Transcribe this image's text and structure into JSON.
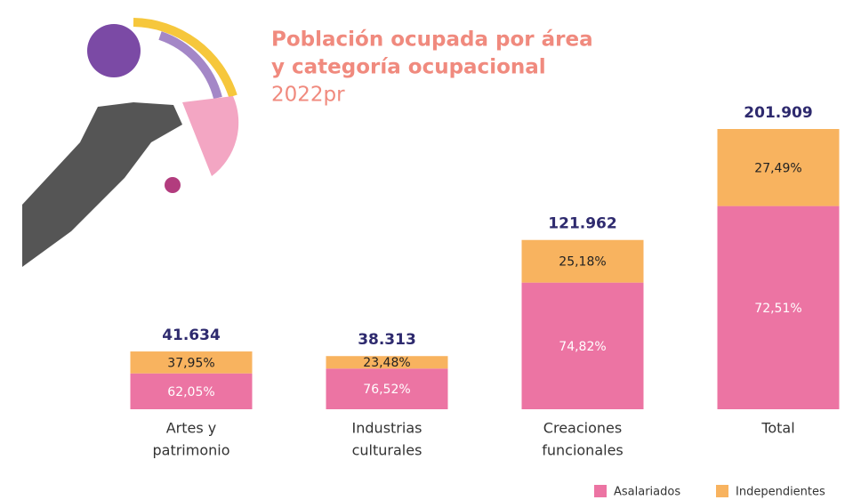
{
  "chart_data": {
    "type": "stacked_bar",
    "title": [
      "Población ocupada por área",
      "y categoría ocupacional"
    ],
    "subtitle": "2022pr",
    "categories": [
      [
        "Artes y",
        "patrimonio"
      ],
      [
        "Industrias",
        "culturales"
      ],
      [
        "Creaciones",
        "funcionales"
      ],
      [
        "Total"
      ]
    ],
    "totals": {
      "values": [
        41634,
        38313,
        121962,
        201909
      ],
      "value_labels": [
        "41.634",
        "38.313",
        "121.962",
        "201.909"
      ],
      "color": "#2e2a6e"
    },
    "series": [
      {
        "name": "Asalariados",
        "color": "#ec74a3",
        "label_color": "#ffffff",
        "values": [
          62.05,
          76.52,
          74.82,
          72.51
        ],
        "value_labels": [
          "62,05%",
          "76,52%",
          "74,82%",
          "72,51%"
        ]
      },
      {
        "name": "Independientes",
        "color": "#f8b35f",
        "label_color": "#222222",
        "values": [
          37.95,
          23.48,
          25.18,
          27.49
        ],
        "value_labels": [
          "37,95%",
          "23,48%",
          "25,18%",
          "27,49%"
        ]
      }
    ]
  }
}
